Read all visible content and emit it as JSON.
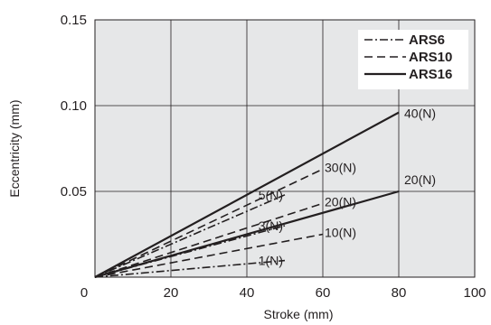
{
  "chart_data": {
    "type": "line",
    "xlabel": "Stroke (mm)",
    "ylabel": "Eccentricity (mm)",
    "xlim": [
      0,
      100
    ],
    "ylim": [
      0,
      0.15
    ],
    "x_ticks": [
      "0",
      "20",
      "40",
      "60",
      "80",
      "100"
    ],
    "y_ticks": [
      "0.05",
      "0.10",
      "0.15"
    ],
    "grid": true,
    "legend_position": "top-right",
    "legend": [
      {
        "name": "ARS6",
        "style": "dashdot"
      },
      {
        "name": "ARS10",
        "style": "dashed"
      },
      {
        "name": "ARS16",
        "style": "solid"
      }
    ],
    "series": [
      {
        "name": "ARS6",
        "style": "dashdot",
        "label": "1(N)",
        "x": [
          0,
          50
        ],
        "y": [
          0,
          0.0097
        ]
      },
      {
        "name": "ARS6",
        "style": "dashdot",
        "label": "3(N)",
        "x": [
          0,
          50
        ],
        "y": [
          0,
          0.03
        ]
      },
      {
        "name": "ARS6",
        "style": "dashdot",
        "label": "5(N)",
        "x": [
          0,
          50
        ],
        "y": [
          0,
          0.048
        ]
      },
      {
        "name": "ARS10",
        "style": "dashed",
        "label": "10(N)",
        "x": [
          0,
          60
        ],
        "y": [
          0,
          0.025
        ]
      },
      {
        "name": "ARS10",
        "style": "dashed",
        "label": "20(N)",
        "x": [
          0,
          60
        ],
        "y": [
          0,
          0.043
        ]
      },
      {
        "name": "ARS10",
        "style": "dashed",
        "label": "30(N)",
        "x": [
          0,
          60
        ],
        "y": [
          0,
          0.063
        ]
      },
      {
        "name": "ARS16",
        "style": "solid",
        "label": "20(N)",
        "x": [
          0,
          80
        ],
        "y": [
          0,
          0.05
        ]
      },
      {
        "name": "ARS16",
        "style": "solid",
        "label": "40(N)",
        "x": [
          0,
          80
        ],
        "y": [
          0,
          0.096
        ]
      }
    ],
    "colors": {
      "plot_background": "#e6e7e8",
      "line": "#231f20",
      "grid": "#231f20"
    }
  }
}
